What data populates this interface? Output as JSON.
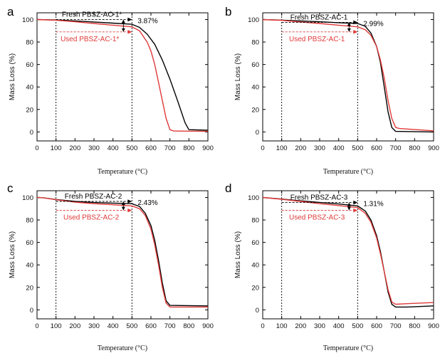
{
  "chart_data": [
    {
      "type": "line",
      "panel_label": "a",
      "xlabel": "Temperature (°C)",
      "ylabel": "Mass Loss (%)",
      "xlim": [
        0,
        900
      ],
      "ylim": [
        -8,
        106
      ],
      "xticks": [
        0,
        100,
        200,
        300,
        400,
        500,
        600,
        700,
        800,
        900
      ],
      "yticks": [
        0,
        20,
        40,
        60,
        80,
        100
      ],
      "series": [
        {
          "name": "Fresh PBSZ-AC-1*",
          "color": "#000000",
          "x": [
            0,
            100,
            200,
            300,
            400,
            500,
            540,
            580,
            620,
            660,
            700,
            740,
            780,
            800,
            900
          ],
          "y": [
            100,
            99.6,
            98.8,
            97.8,
            96.8,
            95.8,
            93,
            87,
            78,
            64,
            47,
            28,
            8,
            2,
            1.5
          ]
        },
        {
          "name": "Used PBSZ-AC-1*",
          "color": "#e03a3a",
          "x": [
            0,
            100,
            200,
            300,
            400,
            500,
            540,
            580,
            600,
            620,
            640,
            660,
            680,
            700,
            720,
            900
          ],
          "y": [
            100,
            99.4,
            98,
            96.5,
            95,
            93.5,
            90,
            80,
            72,
            60,
            44,
            28,
            12,
            2,
            0.8,
            0.5
          ]
        }
      ],
      "annotations": {
        "fresh_label": "Fresh PBSZ-AC-1*",
        "used_label": "Used PBSZ-AC-1*",
        "delta_label": "3.87%",
        "fresh_line_y": 100,
        "used_line_y": 89,
        "bracket_x": 455,
        "guide_lines_x": [
          100,
          500
        ]
      }
    },
    {
      "type": "line",
      "panel_label": "b",
      "xlabel": "Temperature (°C)",
      "ylabel": "Mass Loss (%)",
      "xlim": [
        0,
        900
      ],
      "ylim": [
        -8,
        106
      ],
      "xticks": [
        0,
        100,
        200,
        300,
        400,
        500,
        600,
        700,
        800,
        900
      ],
      "yticks": [
        0,
        20,
        40,
        60,
        80,
        100
      ],
      "series": [
        {
          "name": "Fresh PBSZ-AC-1",
          "color": "#000000",
          "x": [
            0,
            100,
            200,
            300,
            400,
            500,
            540,
            570,
            600,
            620,
            640,
            660,
            680,
            700,
            900
          ],
          "y": [
            100,
            99.5,
            98.8,
            98,
            97.2,
            96.5,
            94,
            88,
            76,
            62,
            40,
            18,
            4,
            0.5,
            0
          ]
        },
        {
          "name": "Used PBSZ-AC-1",
          "color": "#e03a3a",
          "x": [
            0,
            100,
            200,
            300,
            400,
            500,
            540,
            570,
            600,
            620,
            640,
            660,
            680,
            700,
            720,
            900
          ],
          "y": [
            100,
            99.3,
            97.8,
            96.5,
            95,
            93.5,
            91,
            86,
            76,
            64,
            48,
            28,
            12,
            4,
            3,
            1
          ]
        }
      ],
      "annotations": {
        "fresh_label": "Fresh PBSZ-AC-1",
        "used_label": "Used PBSZ-AC-1",
        "delta_label": "2.99%",
        "fresh_line_y": 97.5,
        "used_line_y": 89,
        "bracket_x": 455,
        "guide_lines_x": [
          100,
          500
        ]
      }
    },
    {
      "type": "line",
      "panel_label": "c",
      "xlabel": "Temperature (°C)",
      "ylabel": "Mass Loss (%)",
      "xlim": [
        0,
        900
      ],
      "ylim": [
        -8,
        106
      ],
      "xticks": [
        0,
        100,
        200,
        300,
        400,
        500,
        600,
        700,
        800,
        900
      ],
      "yticks": [
        0,
        20,
        40,
        60,
        80,
        100
      ],
      "series": [
        {
          "name": "Fresh PBSZ-AC-2",
          "color": "#000000",
          "x": [
            0,
            30,
            100,
            200,
            300,
            400,
            500,
            540,
            570,
            600,
            620,
            640,
            660,
            680,
            700,
            900
          ],
          "y": [
            100,
            99.8,
            98.2,
            96.5,
            95.5,
            95,
            94.5,
            92,
            86,
            75,
            62,
            44,
            24,
            8,
            4,
            3.5
          ]
        },
        {
          "name": "Used PBSZ-AC-2",
          "color": "#e03a3a",
          "x": [
            0,
            30,
            100,
            200,
            300,
            400,
            500,
            540,
            570,
            600,
            620,
            640,
            660,
            680,
            700,
            900
          ],
          "y": [
            100,
            99.8,
            98,
            95.8,
            94.5,
            93.5,
            92.5,
            90,
            84,
            72,
            58,
            40,
            20,
            6,
            2.5,
            2.5
          ]
        }
      ],
      "annotations": {
        "fresh_label": "Fresh PBSZ-AC-2",
        "used_label": "Used PBSZ-AC-2",
        "delta_label": "2.43%",
        "fresh_line_y": 96.5,
        "used_line_y": 88.5,
        "bracket_x": 455,
        "guide_lines_x": [
          100,
          500
        ]
      }
    },
    {
      "type": "line",
      "panel_label": "d",
      "xlabel": "Temperature (°C)",
      "ylabel": "Mass Loss (%)",
      "xlim": [
        0,
        900
      ],
      "ylim": [
        -8,
        106
      ],
      "xticks": [
        0,
        100,
        200,
        300,
        400,
        500,
        600,
        700,
        800,
        900
      ],
      "yticks": [
        0,
        20,
        40,
        60,
        80,
        100
      ],
      "series": [
        {
          "name": "Fresh PBSZ-AC-3",
          "color": "#000000",
          "x": [
            0,
            100,
            200,
            300,
            400,
            500,
            540,
            570,
            600,
            620,
            640,
            660,
            680,
            700,
            760,
            900
          ],
          "y": [
            100,
            98.6,
            97,
            95.6,
            94.2,
            92.5,
            88,
            80,
            66,
            52,
            34,
            16,
            5,
            2.5,
            2.5,
            3.5
          ]
        },
        {
          "name": "Used PBSZ-AC-3",
          "color": "#e03a3a",
          "x": [
            0,
            100,
            200,
            300,
            400,
            500,
            540,
            570,
            600,
            620,
            640,
            660,
            680,
            700,
            760,
            900
          ],
          "y": [
            100,
            98.4,
            96.5,
            94.5,
            92.8,
            91,
            86,
            78,
            64,
            50,
            34,
            18,
            7,
            5,
            5.5,
            6.5
          ]
        }
      ],
      "annotations": {
        "fresh_label": "Fresh PBSZ-AC-3",
        "used_label": "Used PBSZ-AC-3",
        "delta_label": "1.31%",
        "fresh_line_y": 95.5,
        "used_line_y": 88.5,
        "bracket_x": 455,
        "guide_lines_x": [
          100,
          500
        ]
      }
    }
  ]
}
